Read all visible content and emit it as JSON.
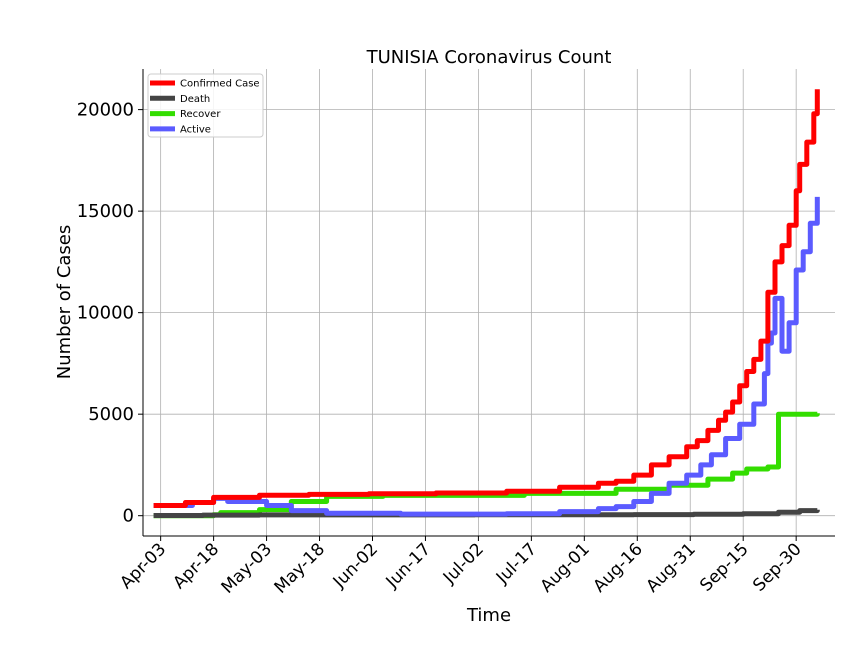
{
  "chart_data": {
    "type": "line",
    "title": "TUNISIA Coronavirus Count",
    "xlabel": "Time",
    "ylabel": "Number of Cases",
    "x_start": "2020-04-01",
    "x_end": "2020-10-06",
    "x_range": [
      "2020-03-29",
      "2020-10-11"
    ],
    "ylim": [
      -1000,
      22000
    ],
    "yticks": [
      0,
      5000,
      10000,
      15000,
      20000
    ],
    "xtick_labels": [
      "Apr-03",
      "Apr-18",
      "May-03",
      "May-18",
      "Jun-02",
      "Jun-17",
      "Jul-02",
      "Jul-17",
      "Aug-01",
      "Aug-16",
      "Aug-31",
      "Sep-15",
      "Sep-30"
    ],
    "xtick_dates": [
      "2020-04-03",
      "2020-04-18",
      "2020-05-03",
      "2020-05-18",
      "2020-06-02",
      "2020-06-17",
      "2020-07-02",
      "2020-07-17",
      "2020-08-01",
      "2020-08-16",
      "2020-08-31",
      "2020-09-15",
      "2020-09-30"
    ],
    "grid": true,
    "legend_position": "top-left",
    "series": [
      {
        "name": "Confirmed Case",
        "color": "#ff0000",
        "x": [
          "2020-04-01",
          "2020-04-10",
          "2020-04-18",
          "2020-05-01",
          "2020-05-15",
          "2020-06-01",
          "2020-06-20",
          "2020-07-10",
          "2020-07-25",
          "2020-08-05",
          "2020-08-10",
          "2020-08-15",
          "2020-08-20",
          "2020-08-25",
          "2020-08-30",
          "2020-09-02",
          "2020-09-05",
          "2020-09-08",
          "2020-09-10",
          "2020-09-12",
          "2020-09-14",
          "2020-09-16",
          "2020-09-18",
          "2020-09-20",
          "2020-09-22",
          "2020-09-24",
          "2020-09-26",
          "2020-09-28",
          "2020-09-30",
          "2020-10-01",
          "2020-10-03",
          "2020-10-05",
          "2020-10-06"
        ],
        "values": [
          500,
          650,
          900,
          1010,
          1050,
          1080,
          1120,
          1200,
          1400,
          1600,
          1700,
          2000,
          2500,
          2900,
          3400,
          3700,
          4200,
          4700,
          5100,
          5600,
          6400,
          7100,
          7700,
          8600,
          11000,
          12500,
          13300,
          14300,
          16000,
          17300,
          18400,
          19800,
          21000
        ]
      },
      {
        "name": "Death",
        "color": "#444444",
        "x": [
          "2020-04-01",
          "2020-04-15",
          "2020-05-01",
          "2020-07-01",
          "2020-08-15",
          "2020-09-01",
          "2020-09-15",
          "2020-09-25",
          "2020-10-01",
          "2020-10-06"
        ],
        "values": [
          10,
          30,
          40,
          50,
          55,
          70,
          100,
          170,
          250,
          290
        ]
      },
      {
        "name": "Recover",
        "color": "#33dd00",
        "x": [
          "2020-04-01",
          "2020-04-18",
          "2020-04-20",
          "2020-05-01",
          "2020-05-10",
          "2020-05-20",
          "2020-06-05",
          "2020-07-15",
          "2020-08-10",
          "2020-08-25",
          "2020-09-05",
          "2020-09-12",
          "2020-09-16",
          "2020-09-22",
          "2020-09-24",
          "2020-09-25",
          "2020-10-06"
        ],
        "values": [
          0,
          50,
          150,
          300,
          700,
          950,
          1000,
          1100,
          1300,
          1500,
          1800,
          2100,
          2300,
          2400,
          2400,
          5000,
          5050
        ]
      },
      {
        "name": "Active",
        "color": "#5b5bff",
        "x": [
          "2020-04-01",
          "2020-04-12",
          "2020-04-18",
          "2020-04-22",
          "2020-05-03",
          "2020-05-10",
          "2020-05-20",
          "2020-06-10",
          "2020-07-10",
          "2020-07-25",
          "2020-08-05",
          "2020-08-10",
          "2020-08-15",
          "2020-08-20",
          "2020-08-25",
          "2020-08-30",
          "2020-09-03",
          "2020-09-06",
          "2020-09-10",
          "2020-09-14",
          "2020-09-18",
          "2020-09-21",
          "2020-09-22",
          "2020-09-23",
          "2020-09-24",
          "2020-09-26",
          "2020-09-27",
          "2020-09-28",
          "2020-09-30",
          "2020-10-02",
          "2020-10-04",
          "2020-10-06"
        ],
        "values": [
          500,
          650,
          850,
          700,
          500,
          250,
          120,
          80,
          100,
          200,
          350,
          450,
          700,
          1100,
          1600,
          2000,
          2500,
          3000,
          3800,
          4500,
          5500,
          7000,
          8500,
          9000,
          10700,
          8100,
          8100,
          9500,
          12100,
          13000,
          14400,
          15700
        ]
      }
    ]
  }
}
